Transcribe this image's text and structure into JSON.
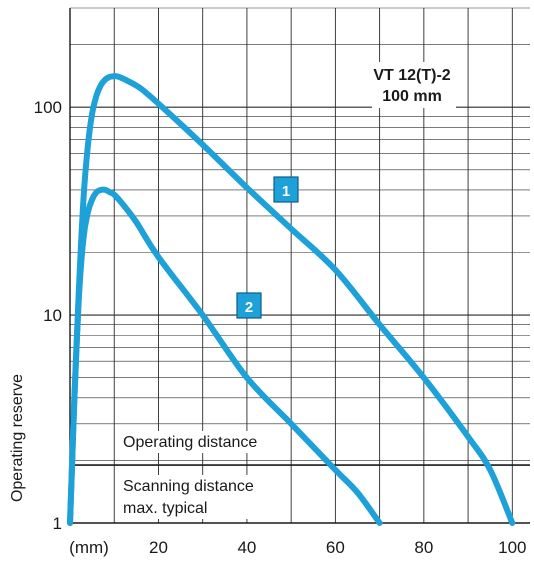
{
  "chart_data": {
    "type": "line",
    "title_lines": [
      "VT 12(T)-2",
      "100 mm"
    ],
    "ylabel": "Operating reserve",
    "x_unit_label": "(mm)",
    "xlim": [
      0,
      104
    ],
    "ylim": [
      1,
      300
    ],
    "y_scale": "log",
    "x_ticks": [
      20,
      40,
      60,
      80,
      100
    ],
    "x_tick_labels": [
      "20",
      "40",
      "60",
      "80",
      "100"
    ],
    "y_ticks": [
      1,
      10,
      100
    ],
    "y_tick_labels": [
      "1",
      "10",
      "100"
    ],
    "grid": true,
    "reference_line_y": 1.9,
    "region_labels": {
      "above": "Operating distance",
      "below_line1": "Scanning distance",
      "below_line2": "max. typical"
    },
    "series": [
      {
        "name": "1",
        "color": "#1ea0d8",
        "x": [
          0,
          0.5,
          1,
          2,
          3,
          4,
          5,
          6,
          7,
          8,
          9,
          10,
          11,
          13,
          16,
          20,
          30,
          40,
          50,
          60,
          70,
          80,
          90,
          95,
          100
        ],
        "y": [
          1,
          2,
          4,
          13,
          35,
          64,
          93,
          114,
          128,
          136,
          140,
          141,
          140,
          134,
          123,
          104,
          66,
          41,
          26,
          16.5,
          9,
          5,
          2.6,
          1.8,
          1
        ]
      },
      {
        "name": "2",
        "color": "#1ea0d8",
        "x": [
          0,
          0.5,
          1,
          2,
          3,
          4,
          5,
          6,
          7,
          8,
          9,
          10,
          12,
          15,
          20,
          30,
          40,
          50,
          60,
          65,
          70
        ],
        "y": [
          1,
          2,
          4,
          12,
          23,
          31,
          36,
          39,
          40,
          40,
          39,
          38,
          34,
          28,
          19,
          10,
          5,
          3,
          1.8,
          1.4,
          1
        ]
      }
    ]
  }
}
